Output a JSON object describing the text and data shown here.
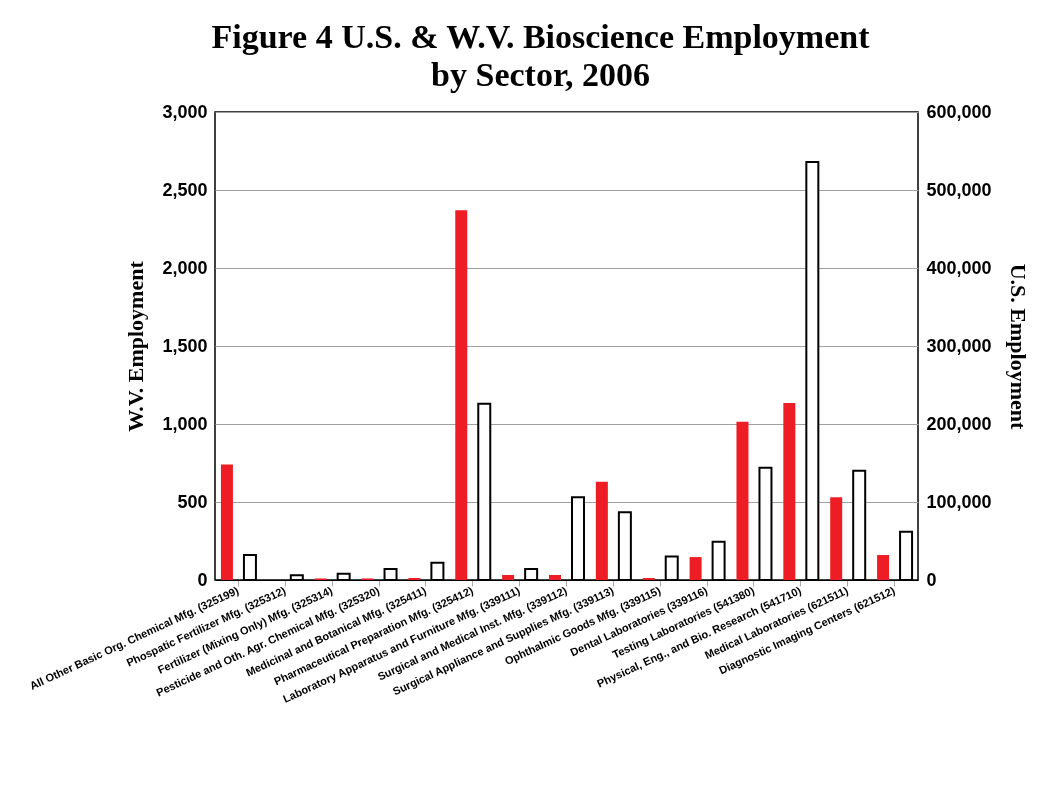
{
  "chart_data": {
    "type": "bar",
    "title": "Figure 4 U.S. & W.V. Bioscience Employment\nby Sector, 2006",
    "ylabel": "W.V. Employment",
    "y2label": "U.S. Employment",
    "categories": [
      "All Other Basic Org. Chemical Mfg. (325199)",
      "Phospatic Fertilizer Mfg. (325312)",
      "Fertilizer (Mixing Only) Mfg. (325314)",
      "Pesticide and Oth. Agr. Chemical Mfg. (325320)",
      "Medicinal and Botanical Mfg. (325411)",
      "Pharmaceutical Preparation Mfg. (325412)",
      "Laboratory Apparatus and Furniture Mfg. (339111)",
      "Surgical and Medical Inst. Mfg. (339112)",
      "Surgical Appliance and Supplies Mfg. (339113)",
      "Ophthalmic Goods Mfg. (339115)",
      "Dental Laboratories (339116)",
      "Testing Laboratories (541380)",
      "Physical, Eng., and Bio. Research (541710)",
      "Medical Laboratories (621511)",
      "Diagnostic Imaging Centers (621512)"
    ],
    "series": [
      {
        "color": "#ee1c25",
        "values": [
          740,
          0,
          10,
          10,
          13,
          2370,
          32,
          32,
          630,
          13,
          147,
          1015,
          1135,
          530,
          160
        ]
      },
      {
        "color": "#ffffff",
        "axis": "y2",
        "values": [
          32000,
          6000,
          8000,
          14000,
          22000,
          226000,
          14000,
          106000,
          87000,
          30000,
          49000,
          144000,
          536000,
          140000,
          62000
        ]
      }
    ],
    "ylim": [
      0,
      3000
    ],
    "yticks": [
      0,
      500,
      {
        "value": 1000,
        "label": "1,000"
      },
      {
        "value": 1500,
        "label": "1,500"
      },
      {
        "value": 2000,
        "label": "2,000"
      },
      {
        "value": 2500,
        "label": "2,500"
      },
      {
        "value": 3000,
        "label": "3,000"
      }
    ],
    "y2lim": [
      0,
      600000
    ],
    "y2ticks": [
      0,
      {
        "value": 100000,
        "label": "100,000"
      },
      {
        "value": 200000,
        "label": "200,000"
      },
      {
        "value": 300000,
        "label": "300,000"
      },
      {
        "value": 400000,
        "label": "400,000"
      },
      {
        "value": 500000,
        "label": "500,000"
      },
      {
        "value": 600000,
        "label": "600,000"
      }
    ],
    "grid": "y"
  }
}
